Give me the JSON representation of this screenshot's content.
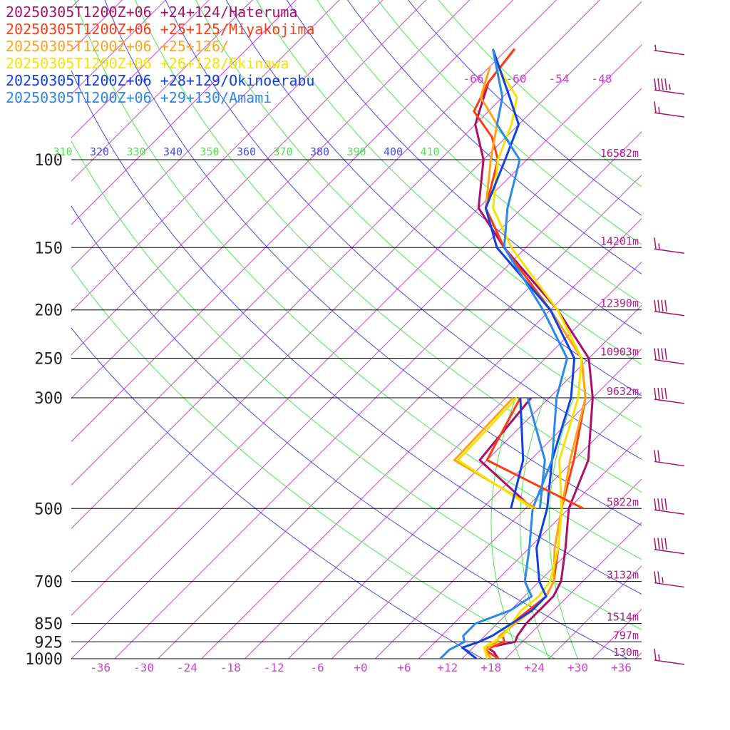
{
  "chart_data": {
    "type": "line",
    "title": "",
    "xlabel": "",
    "ylabel": "",
    "x_ticks": [
      "-36",
      "-30",
      "-24",
      "-18",
      "-12",
      "-6",
      "+0",
      "+6",
      "+12",
      "+18",
      "+24",
      "+30",
      "+36"
    ],
    "x_tick_values": [
      -36,
      -30,
      -24,
      -18,
      -12,
      -6,
      0,
      6,
      12,
      18,
      24,
      30,
      36
    ],
    "xlim": [
      -40,
      40
    ],
    "y_axis": {
      "levels": [
        100,
        150,
        200,
        250,
        300,
        500,
        700,
        850,
        925,
        1000
      ],
      "labels": [
        "100",
        "150",
        "200",
        "250",
        "300",
        "500",
        "700",
        "850",
        "925",
        "1000"
      ],
      "heights": [
        "16582m",
        "14201m",
        "12390m",
        "10903m",
        "9632m",
        "5822m",
        "3132m",
        "1514m",
        "797m",
        "130m"
      ],
      "log_scale": true
    },
    "upper_temp_ticks": [
      "-66",
      "-60",
      "-54",
      "-48"
    ],
    "theta_e_ticks": [
      "310",
      "320",
      "330",
      "340",
      "350",
      "360",
      "370",
      "380",
      "390",
      "400",
      "410"
    ],
    "legend": [
      {
        "text": "20250305T1200Z+06 +24+124/Hateruma",
        "color": "#a8106a"
      },
      {
        "text": "20250305T1200Z+06 +25+125/Miyakojima",
        "color": "#ff3b12"
      },
      {
        "text": "20250305T1200Z+06 +25+126/",
        "color": "#ffa41a"
      },
      {
        "text": "20250305T1200Z+06 +26+128/Okinawa",
        "color": "#f5e400"
      },
      {
        "text": "20250305T1200Z+06 +28+129/Okinoerabu",
        "color": "#1040e0"
      },
      {
        "text": "20250305T1200Z+06 +29+130/Amami",
        "color": "#2a88ea"
      }
    ],
    "legend_position": "top-left",
    "series": [
      {
        "name": "Hateruma",
        "color": "#a8106a",
        "points": [
          [
            1000,
            19
          ],
          [
            970,
            17.5
          ],
          [
            950,
            16
          ],
          [
            925,
            19
          ],
          [
            900,
            18.5
          ],
          [
            850,
            18
          ],
          [
            800,
            18
          ],
          [
            750,
            18
          ],
          [
            700,
            17
          ],
          [
            600,
            13
          ],
          [
            500,
            8
          ],
          [
            400,
            4
          ],
          [
            300,
            -4
          ],
          [
            250,
            -10
          ],
          [
            200,
            -21
          ],
          [
            150,
            -37
          ],
          [
            125,
            -46
          ],
          [
            100,
            -52
          ],
          [
            85,
            -58
          ],
          [
            70,
            -62
          ],
          [
            60,
            -63
          ]
        ]
      },
      {
        "name": "Miyakojima",
        "color": "#ff3b12",
        "points": [
          [
            1000,
            19
          ],
          [
            960,
            16
          ],
          [
            925,
            17.5
          ],
          [
            900,
            16.5
          ],
          [
            850,
            16
          ],
          [
            800,
            16.5
          ],
          [
            750,
            17
          ],
          [
            700,
            16
          ],
          [
            600,
            12
          ],
          [
            500,
            7
          ],
          [
            400,
            2
          ],
          [
            300,
            -5
          ],
          [
            250,
            -11
          ],
          [
            200,
            -22
          ],
          [
            150,
            -37
          ],
          [
            125,
            -45
          ],
          [
            100,
            -50
          ],
          [
            90,
            -54
          ],
          [
            80,
            -60
          ],
          [
            70,
            -62
          ],
          [
            60,
            -63
          ]
        ]
      },
      {
        "name": "25+126",
        "color": "#ffa41a",
        "points": [
          [
            1000,
            18
          ],
          [
            960,
            16
          ],
          [
            925,
            16.5
          ],
          [
            900,
            16
          ],
          [
            850,
            16.5
          ],
          [
            800,
            17
          ],
          [
            750,
            17
          ],
          [
            700,
            16
          ],
          [
            600,
            11.5
          ],
          [
            500,
            7
          ],
          [
            400,
            1.5
          ],
          [
            300,
            -5
          ],
          [
            250,
            -11
          ],
          [
            200,
            -22
          ],
          [
            150,
            -38
          ],
          [
            125,
            -45
          ],
          [
            100,
            -51
          ],
          [
            85,
            -55
          ],
          [
            75,
            -61
          ],
          [
            65,
            -64
          ]
        ]
      },
      {
        "name": "Okinawa",
        "color": "#f5e400",
        "points": [
          [
            1000,
            17.5
          ],
          [
            950,
            15.5
          ],
          [
            925,
            16
          ],
          [
            900,
            16.5
          ],
          [
            850,
            16
          ],
          [
            800,
            15.5
          ],
          [
            750,
            16
          ],
          [
            700,
            15.5
          ],
          [
            600,
            12
          ],
          [
            500,
            7
          ],
          [
            400,
            0
          ],
          [
            300,
            -6
          ],
          [
            250,
            -11
          ],
          [
            200,
            -21
          ],
          [
            150,
            -36
          ],
          [
            125,
            -44
          ],
          [
            100,
            -50
          ],
          [
            85,
            -53
          ],
          [
            75,
            -56
          ],
          [
            65,
            -63
          ]
        ]
      },
      {
        "name": "Okinoerabu",
        "color": "#1040e0",
        "points": [
          [
            1000,
            16
          ],
          [
            950,
            12.5
          ],
          [
            925,
            14
          ],
          [
            900,
            15
          ],
          [
            850,
            16
          ],
          [
            800,
            17
          ],
          [
            750,
            17
          ],
          [
            700,
            14
          ],
          [
            600,
            9
          ],
          [
            500,
            5
          ],
          [
            400,
            -1
          ],
          [
            300,
            -7
          ],
          [
            250,
            -12
          ],
          [
            200,
            -22
          ],
          [
            150,
            -38
          ],
          [
            125,
            -45
          ],
          [
            100,
            -49
          ],
          [
            85,
            -52
          ],
          [
            75,
            -57
          ],
          [
            60,
            -66
          ]
        ]
      },
      {
        "name": "Amami",
        "color": "#2a88ea",
        "points": [
          [
            1000,
            11
          ],
          [
            960,
            11
          ],
          [
            925,
            12
          ],
          [
            900,
            11
          ],
          [
            850,
            11
          ],
          [
            800,
            14
          ],
          [
            750,
            15
          ],
          [
            700,
            12
          ],
          [
            600,
            8
          ],
          [
            500,
            3
          ],
          [
            400,
            -1
          ],
          [
            300,
            -9
          ],
          [
            250,
            -13
          ],
          [
            200,
            -23
          ],
          [
            150,
            -37
          ],
          [
            125,
            -42
          ],
          [
            100,
            -47
          ],
          [
            85,
            -55
          ],
          [
            75,
            -58
          ],
          [
            60,
            -66
          ]
        ]
      }
    ],
    "parcel_traces": [
      {
        "name": "Hateruma",
        "points": [
          [
            300,
            -12.5
          ],
          [
            400,
            -11
          ],
          [
            500,
            3
          ]
        ]
      },
      {
        "name": "Miyakojima",
        "points": [
          [
            300,
            -14
          ],
          [
            400,
            -10
          ],
          [
            500,
            10
          ]
        ]
      },
      {
        "name": "25+126",
        "points": [
          [
            300,
            -15
          ],
          [
            400,
            -14.5
          ],
          [
            500,
            3.5
          ]
        ]
      },
      {
        "name": "Okinawa",
        "points": [
          [
            300,
            -14.5
          ],
          [
            400,
            -14
          ],
          [
            500,
            3
          ]
        ]
      },
      {
        "name": "Okinoerabu",
        "points": [
          [
            300,
            -14
          ],
          [
            400,
            -5
          ],
          [
            500,
            0
          ]
        ]
      },
      {
        "name": "Amami",
        "points": [
          [
            300,
            -13
          ],
          [
            400,
            -2
          ],
          [
            500,
            4
          ]
        ]
      }
    ],
    "wind_barbs_color": "#a8106a",
    "wind_barbs": [
      {
        "p": 60,
        "knots": 5
      },
      {
        "p": 72,
        "knots": 45
      },
      {
        "p": 80,
        "knots": 15
      },
      {
        "p": 150,
        "knots": 15
      },
      {
        "p": 200,
        "knots": 40
      },
      {
        "p": 250,
        "knots": 40
      },
      {
        "p": 300,
        "knots": 40
      },
      {
        "p": 400,
        "knots": 20
      },
      {
        "p": 500,
        "knots": 40
      },
      {
        "p": 600,
        "knots": 40
      },
      {
        "p": 700,
        "knots": 25
      },
      {
        "p": 1000,
        "knots": 15
      }
    ],
    "grid": true
  }
}
